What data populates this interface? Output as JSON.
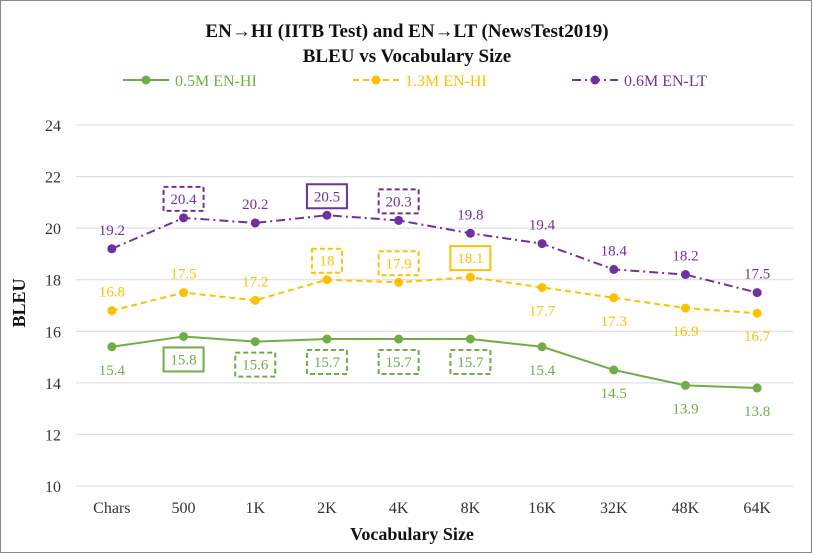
{
  "chart_data": {
    "type": "line",
    "title": "EN→HI (IITB Test) and EN→LT (NewsTest2019)",
    "subtitle": "BLEU vs Vocabulary Size",
    "xlabel": "Vocabulary Size",
    "ylabel": "BLEU",
    "categories": [
      "Chars",
      "500",
      "1K",
      "2K",
      "4K",
      "8K",
      "16K",
      "32K",
      "48K",
      "64K"
    ],
    "ylim": [
      10,
      24
    ],
    "yticks": [
      10,
      12,
      14,
      16,
      18,
      20,
      22,
      24
    ],
    "grid": true,
    "legend_position": "top",
    "series": [
      {
        "name": "0.5M EN-HI",
        "color": "#70ad47",
        "line_style": "solid",
        "values": [
          15.4,
          15.8,
          15.6,
          15.7,
          15.7,
          15.7,
          15.4,
          14.5,
          13.9,
          13.8
        ],
        "labels": [
          "15.4",
          "15.8",
          "15.6",
          "15.7",
          "15.7",
          "15.7",
          "15.4",
          "14.5",
          "13.9",
          "13.8"
        ],
        "label_position": "below",
        "boxed": [
          "none",
          "solid",
          "dashed",
          "dashed",
          "dashed",
          "dashed",
          "none",
          "none",
          "none",
          "none"
        ]
      },
      {
        "name": "1.3M EN-HI",
        "color": "#ffc000",
        "line_style": "dashed",
        "values": [
          16.8,
          17.5,
          17.2,
          18.0,
          17.9,
          18.1,
          17.7,
          17.3,
          16.9,
          16.7
        ],
        "labels": [
          "16.8",
          "17.5",
          "17.2",
          "18",
          "17.9",
          "18.1",
          "17.7",
          "17.3",
          "16.9",
          "16.7"
        ],
        "label_position": [
          "above",
          "above",
          "above",
          "above",
          "above",
          "above",
          "below",
          "below",
          "below",
          "below"
        ],
        "boxed": [
          "none",
          "none",
          "none",
          "dashed",
          "dashed",
          "solid",
          "none",
          "none",
          "none",
          "none"
        ]
      },
      {
        "name": "0.6M EN-LT",
        "color": "#7030a0",
        "line_style": "dashdot",
        "values": [
          19.2,
          20.4,
          20.2,
          20.5,
          20.3,
          19.8,
          19.4,
          18.4,
          18.2,
          17.5
        ],
        "labels": [
          "19.2",
          "20.4",
          "20.2",
          "20.5",
          "20.3",
          "19.8",
          "19.4",
          "18.4",
          "18.2",
          "17.5"
        ],
        "label_position": "above",
        "boxed": [
          "none",
          "dashed",
          "none",
          "solid",
          "dashed",
          "none",
          "none",
          "none",
          "none",
          "none"
        ]
      }
    ]
  }
}
